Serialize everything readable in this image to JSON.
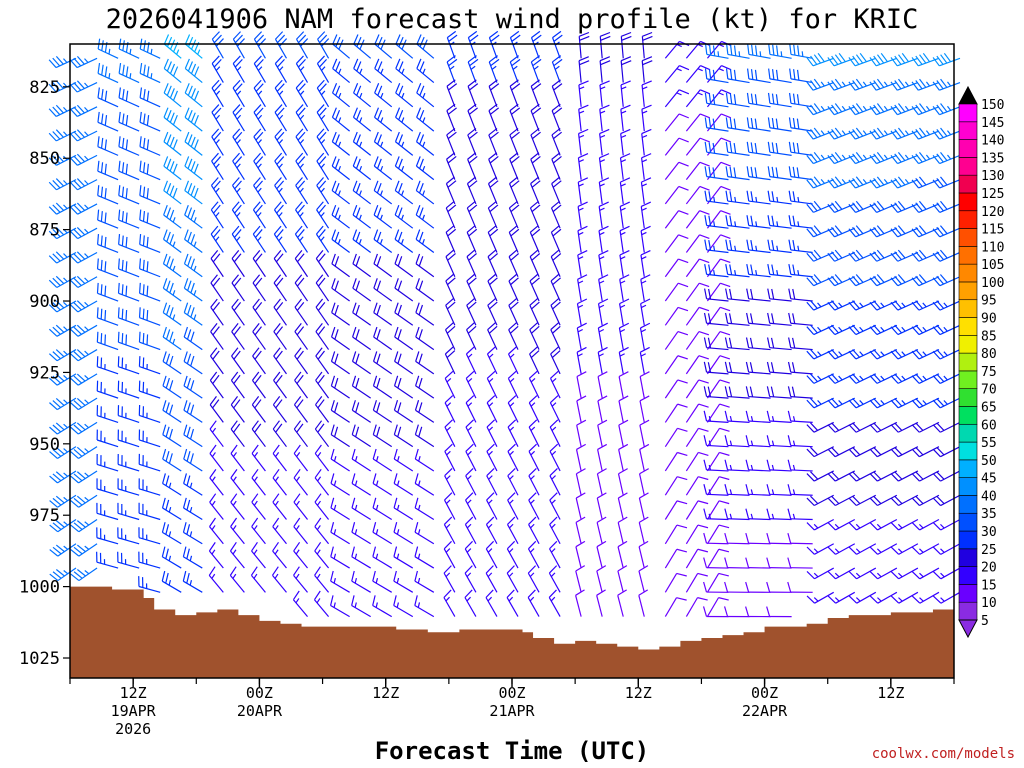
{
  "title": "2026041906 NAM forecast wind profile (kt) for KRIC",
  "credit": "coolwx.com/models",
  "colors": {
    "ground": "#a0522d",
    "credit": "#c02020"
  },
  "chart_data": {
    "type": "wind-barb",
    "title": "2026041906 NAM forecast wind profile (kt) for KRIC",
    "xlabel": "Forecast Time (UTC)",
    "ylabel": "",
    "x_range_hours": [
      0,
      84
    ],
    "ylim": [
      1032,
      810
    ],
    "y_ticks": [
      825,
      850,
      875,
      900,
      925,
      950,
      975,
      1000,
      1025
    ],
    "x_ticks": [
      {
        "hour": 6,
        "line1": "12Z",
        "line2": "19APR",
        "line3": "2026"
      },
      {
        "hour": 18,
        "line1": "00Z",
        "line2": "20APR",
        "line3": ""
      },
      {
        "hour": 30,
        "line1": "12Z",
        "line2": "",
        "line3": ""
      },
      {
        "hour": 42,
        "line1": "00Z",
        "line2": "21APR",
        "line3": ""
      },
      {
        "hour": 54,
        "line1": "12Z",
        "line2": "",
        "line3": ""
      },
      {
        "hour": 66,
        "line1": "00Z",
        "line2": "22APR",
        "line3": ""
      },
      {
        "hour": 78,
        "line1": "12Z",
        "line2": "",
        "line3": ""
      }
    ],
    "colorbar": {
      "units": "kt",
      "levels": [
        5,
        10,
        15,
        20,
        25,
        30,
        35,
        40,
        45,
        50,
        55,
        60,
        65,
        70,
        75,
        80,
        85,
        90,
        95,
        100,
        105,
        110,
        115,
        120,
        125,
        130,
        135,
        140,
        145,
        150
      ],
      "colors": [
        "#8a2be2",
        "#6a00ff",
        "#3300ff",
        "#2000e0",
        "#0030ff",
        "#0050ff",
        "#0070ff",
        "#0090ff",
        "#00b0ff",
        "#00e0e0",
        "#00d8b0",
        "#00e060",
        "#30e030",
        "#70f020",
        "#b0f010",
        "#f0f000",
        "#ffe000",
        "#ffc000",
        "#ffa000",
        "#ff8800",
        "#ff7000",
        "#ff5000",
        "#ff2000",
        "#ff0000",
        "#f00050",
        "#ff0090",
        "#ff00b0",
        "#ff00d0",
        "#ff00ff"
      ]
    },
    "surface_pressure": [
      {
        "hour": 0,
        "p": 1000
      },
      {
        "hour": 4,
        "p": 1001
      },
      {
        "hour": 7,
        "p": 1004
      },
      {
        "hour": 8,
        "p": 1008
      },
      {
        "hour": 10,
        "p": 1010
      },
      {
        "hour": 12,
        "p": 1009
      },
      {
        "hour": 14,
        "p": 1008
      },
      {
        "hour": 16,
        "p": 1010
      },
      {
        "hour": 18,
        "p": 1012
      },
      {
        "hour": 20,
        "p": 1013
      },
      {
        "hour": 22,
        "p": 1014
      },
      {
        "hour": 30,
        "p": 1014
      },
      {
        "hour": 31,
        "p": 1015
      },
      {
        "hour": 34,
        "p": 1016
      },
      {
        "hour": 37,
        "p": 1015
      },
      {
        "hour": 42,
        "p": 1015
      },
      {
        "hour": 43,
        "p": 1016
      },
      {
        "hour": 44,
        "p": 1018
      },
      {
        "hour": 46,
        "p": 1020
      },
      {
        "hour": 48,
        "p": 1019
      },
      {
        "hour": 50,
        "p": 1020
      },
      {
        "hour": 52,
        "p": 1021
      },
      {
        "hour": 54,
        "p": 1022
      },
      {
        "hour": 56,
        "p": 1021
      },
      {
        "hour": 58,
        "p": 1019
      },
      {
        "hour": 60,
        "p": 1018
      },
      {
        "hour": 62,
        "p": 1017
      },
      {
        "hour": 64,
        "p": 1016
      },
      {
        "hour": 66,
        "p": 1014
      },
      {
        "hour": 70,
        "p": 1013
      },
      {
        "hour": 72,
        "p": 1011
      },
      {
        "hour": 74,
        "p": 1010
      },
      {
        "hour": 78,
        "p": 1009
      },
      {
        "hour": 82,
        "p": 1008
      },
      {
        "hour": 84,
        "p": 1007
      }
    ],
    "wind_barbs_note": "barb grid every 2 h from 815 hPa to the surface; speed/direction read approximately from the figure",
    "wind_regimes": [
      {
        "hours": [
          0,
          4
        ],
        "dir": 235,
        "spd_low": 35,
        "spd_high": 35
      },
      {
        "hours": [
          4,
          9
        ],
        "dir": 285,
        "spd_low": 25,
        "spd_high": 35
      },
      {
        "hours": [
          9,
          14
        ],
        "dir": 300,
        "spd_low": 25,
        "spd_high": 45
      },
      {
        "hours": [
          14,
          26
        ],
        "dir": 320,
        "spd_low": 15,
        "spd_high": 30
      },
      {
        "hours": [
          26,
          36
        ],
        "dir": 300,
        "spd_low": 15,
        "spd_high": 30
      },
      {
        "hours": [
          36,
          48
        ],
        "dir": 330,
        "spd_low": 15,
        "spd_high": 25
      },
      {
        "hours": [
          48,
          56
        ],
        "dir": 345,
        "spd_low": 10,
        "spd_high": 20
      },
      {
        "hours": [
          56,
          62
        ],
        "dir": 30,
        "spd_low": 10,
        "spd_high": 15
      },
      {
        "hours": [
          62,
          72
        ],
        "dir": 270,
        "spd_low": 10,
        "spd_high": 35
      },
      {
        "hours": [
          72,
          84
        ],
        "dir": 240,
        "spd_low": 15,
        "spd_high": 40
      }
    ]
  }
}
